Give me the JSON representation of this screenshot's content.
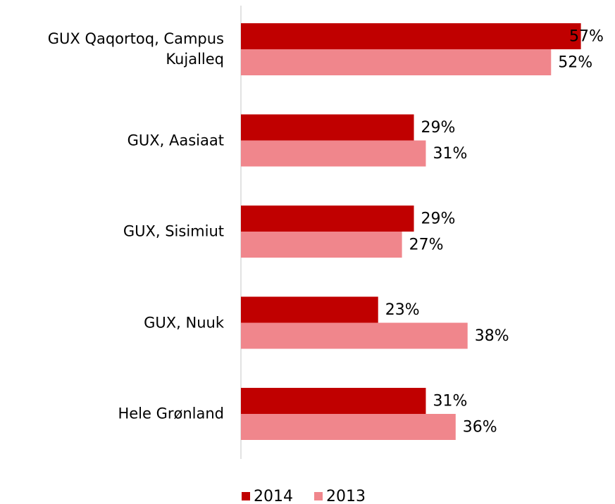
{
  "chart_data": {
    "type": "hbar",
    "categories": [
      "GUX Qaqortoq, Campus Kujalleq",
      "GUX, Aasiaat",
      "GUX, Sisimiut",
      "GUX, Nuuk",
      "Hele Grønland"
    ],
    "series": [
      {
        "name": "2014",
        "color": "#c00000",
        "values": [
          57,
          29,
          29,
          23,
          31
        ],
        "value_labels": [
          "57%",
          "29%",
          "29%",
          "23%",
          "31%"
        ]
      },
      {
        "name": "2013",
        "color": "#f0868c",
        "values": [
          52,
          31,
          27,
          38,
          36
        ],
        "value_labels": [
          "52%",
          "31%",
          "27%",
          "38%",
          "36%"
        ]
      }
    ],
    "xlim": [
      0,
      60
    ],
    "legend": "bottom"
  }
}
